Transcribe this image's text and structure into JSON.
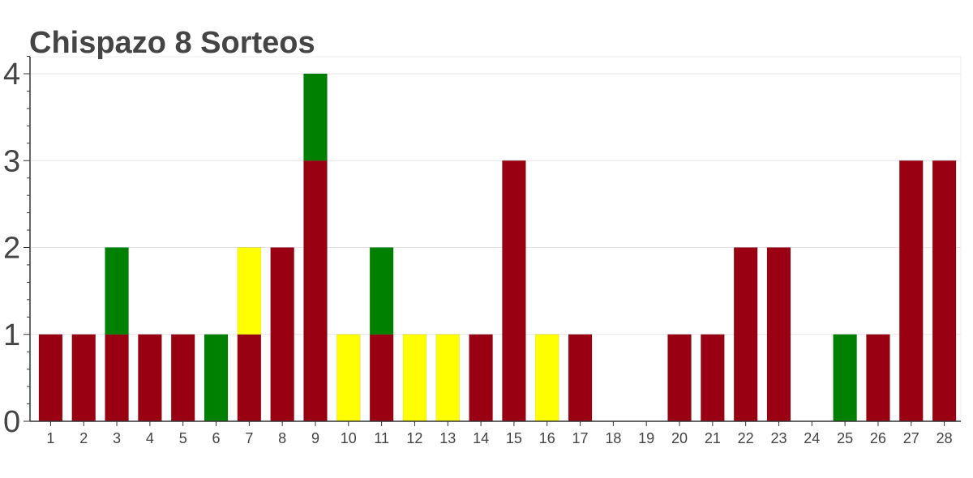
{
  "chart_data": {
    "type": "bar",
    "stacked": true,
    "title": "Chispazo 8 Sorteos",
    "xlabel": "",
    "ylabel": "",
    "ylim": [
      0,
      4.2
    ],
    "yticks": [
      0,
      1,
      2,
      3,
      4
    ],
    "grid": true,
    "legend": "none",
    "categories": [
      "1",
      "2",
      "3",
      "4",
      "5",
      "6",
      "7",
      "8",
      "9",
      "10",
      "11",
      "12",
      "13",
      "14",
      "15",
      "16",
      "17",
      "18",
      "19",
      "20",
      "21",
      "22",
      "23",
      "24",
      "25",
      "26",
      "27",
      "28"
    ],
    "series": [
      {
        "color": "#990011",
        "values": [
          1,
          1,
          1,
          1,
          1,
          0,
          1,
          2,
          3,
          0,
          1,
          0,
          0,
          1,
          3,
          0,
          1,
          0,
          0,
          1,
          1,
          2,
          2,
          0,
          0,
          1,
          3,
          3
        ]
      },
      {
        "color": "#ffff00",
        "values": [
          0,
          0,
          0,
          0,
          0,
          0,
          1,
          0,
          0,
          1,
          0,
          1,
          1,
          0,
          0,
          1,
          0,
          0,
          0,
          0,
          0,
          0,
          0,
          0,
          0,
          0,
          0,
          0
        ]
      },
      {
        "color": "#008000",
        "values": [
          0,
          0,
          1,
          0,
          0,
          1,
          0,
          0,
          1,
          0,
          1,
          0,
          0,
          0,
          0,
          0,
          0,
          0,
          0,
          0,
          0,
          0,
          0,
          0,
          1,
          0,
          0,
          0
        ]
      }
    ]
  }
}
